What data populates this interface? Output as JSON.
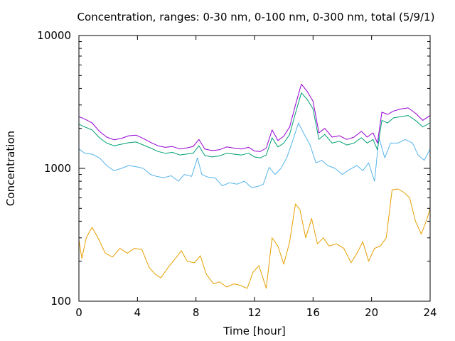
{
  "chart_data": {
    "type": "line",
    "title": "Concentration, ranges: 0-30 nm, 0-100 nm, 0-300 nm, total (5/9/1)",
    "xlabel": "Time [hour]",
    "ylabel": "Concentration",
    "xlim": [
      0,
      24
    ],
    "ylim": [
      100,
      10000
    ],
    "yscale": "log",
    "x_ticks": [
      0,
      4,
      8,
      12,
      16,
      20,
      24
    ],
    "y_ticks": [
      100,
      1000,
      10000
    ],
    "grid": false,
    "legend": "none",
    "series": [
      {
        "color": "#e69f00",
        "x": [
          0,
          0.2,
          0.5,
          0.9,
          1.3,
          1.8,
          2.3,
          2.8,
          3.3,
          3.8,
          4.3,
          4.8,
          5.2,
          5.6,
          6.1,
          6.6,
          7.0,
          7.4,
          7.9,
          8.3,
          8.7,
          9.2,
          9.6,
          10.1,
          10.6,
          11.0,
          11.5,
          11.9,
          12.3,
          12.8,
          13.2,
          13.6,
          14.0,
          14.4,
          14.8,
          15.1,
          15.5,
          15.9,
          16.3,
          16.7,
          17.1,
          17.6,
          18.1,
          18.6,
          19.0,
          19.4,
          19.8,
          20.2,
          20.6,
          21.0,
          21.4,
          21.8,
          22.2,
          22.6,
          23.0,
          23.4,
          23.8,
          24.0
        ],
        "values": [
          290,
          210,
          300,
          360,
          300,
          230,
          215,
          250,
          230,
          250,
          245,
          180,
          160,
          150,
          180,
          210,
          240,
          200,
          195,
          220,
          160,
          135,
          140,
          128,
          135,
          132,
          125,
          165,
          185,
          125,
          300,
          260,
          190,
          280,
          540,
          490,
          300,
          420,
          270,
          300,
          260,
          270,
          250,
          195,
          230,
          280,
          200,
          250,
          260,
          300,
          690,
          700,
          660,
          600,
          400,
          320,
          420,
          500
        ]
      },
      {
        "color": "#56b4e9",
        "x": [
          0,
          0.4,
          0.9,
          1.4,
          1.9,
          2.4,
          2.9,
          3.4,
          3.9,
          4.4,
          4.9,
          5.3,
          5.8,
          6.3,
          6.8,
          7.2,
          7.7,
          8.1,
          8.4,
          8.8,
          9.3,
          9.8,
          10.3,
          10.8,
          11.3,
          11.8,
          12.2,
          12.6,
          13.0,
          13.4,
          13.8,
          14.2,
          14.6,
          15.0,
          15.4,
          15.8,
          16.2,
          16.6,
          17.0,
          17.5,
          18.0,
          18.5,
          19.0,
          19.4,
          19.8,
          20.2,
          20.5,
          20.9,
          21.3,
          21.8,
          22.3,
          22.8,
          23.2,
          23.6,
          24.0
        ],
        "values": [
          1400,
          1300,
          1280,
          1200,
          1050,
          960,
          1000,
          1050,
          1030,
          1000,
          900,
          870,
          850,
          880,
          800,
          900,
          870,
          1200,
          900,
          860,
          850,
          740,
          780,
          760,
          800,
          720,
          730,
          760,
          1020,
          900,
          1000,
          1200,
          1600,
          2200,
          1800,
          1500,
          1100,
          1150,
          1050,
          1000,
          900,
          980,
          1050,
          960,
          1100,
          800,
          1700,
          1200,
          1550,
          1550,
          1650,
          1550,
          1250,
          1150,
          1400
        ]
      },
      {
        "color": "#009e73",
        "x": [
          0,
          0.4,
          0.9,
          1.4,
          1.9,
          2.4,
          2.9,
          3.4,
          3.9,
          4.4,
          4.9,
          5.4,
          5.9,
          6.4,
          6.9,
          7.3,
          7.8,
          8.2,
          8.6,
          9.1,
          9.6,
          10.1,
          10.6,
          11.1,
          11.6,
          12.0,
          12.4,
          12.8,
          13.2,
          13.6,
          14.0,
          14.4,
          14.8,
          15.2,
          15.6,
          16.0,
          16.4,
          16.8,
          17.3,
          17.8,
          18.3,
          18.8,
          19.3,
          19.7,
          20.1,
          20.4,
          20.7,
          21.1,
          21.5,
          22.0,
          22.5,
          23.0,
          23.5,
          24.0
        ],
        "values": [
          2150,
          2050,
          1950,
          1700,
          1550,
          1480,
          1520,
          1560,
          1580,
          1500,
          1420,
          1340,
          1300,
          1320,
          1260,
          1280,
          1300,
          1480,
          1250,
          1220,
          1240,
          1300,
          1280,
          1260,
          1300,
          1220,
          1200,
          1260,
          1700,
          1450,
          1550,
          1800,
          2600,
          3700,
          3300,
          2800,
          1650,
          1800,
          1550,
          1600,
          1500,
          1550,
          1700,
          1550,
          1650,
          1380,
          2300,
          2200,
          2400,
          2450,
          2500,
          2300,
          2050,
          2200
        ]
      },
      {
        "color": "#9400d3",
        "x": [
          0,
          0.4,
          0.9,
          1.4,
          1.9,
          2.4,
          2.9,
          3.4,
          3.9,
          4.4,
          4.9,
          5.4,
          5.9,
          6.4,
          6.9,
          7.3,
          7.8,
          8.2,
          8.6,
          9.1,
          9.6,
          10.1,
          10.6,
          11.1,
          11.6,
          12.0,
          12.4,
          12.8,
          13.2,
          13.6,
          14.0,
          14.4,
          14.8,
          15.2,
          15.6,
          16.0,
          16.4,
          16.8,
          17.3,
          17.8,
          18.3,
          18.8,
          19.3,
          19.7,
          20.1,
          20.4,
          20.7,
          21.1,
          21.5,
          22.0,
          22.5,
          23.0,
          23.5,
          24.0
        ],
        "values": [
          2450,
          2350,
          2200,
          1900,
          1720,
          1640,
          1680,
          1760,
          1780,
          1680,
          1570,
          1480,
          1440,
          1460,
          1400,
          1420,
          1460,
          1650,
          1400,
          1360,
          1380,
          1450,
          1420,
          1400,
          1440,
          1350,
          1340,
          1420,
          1950,
          1620,
          1750,
          2050,
          3000,
          4300,
          3800,
          3200,
          1850,
          2000,
          1720,
          1760,
          1650,
          1720,
          1900,
          1720,
          1850,
          1550,
          2650,
          2550,
          2700,
          2800,
          2850,
          2600,
          2300,
          2500
        ]
      }
    ]
  }
}
